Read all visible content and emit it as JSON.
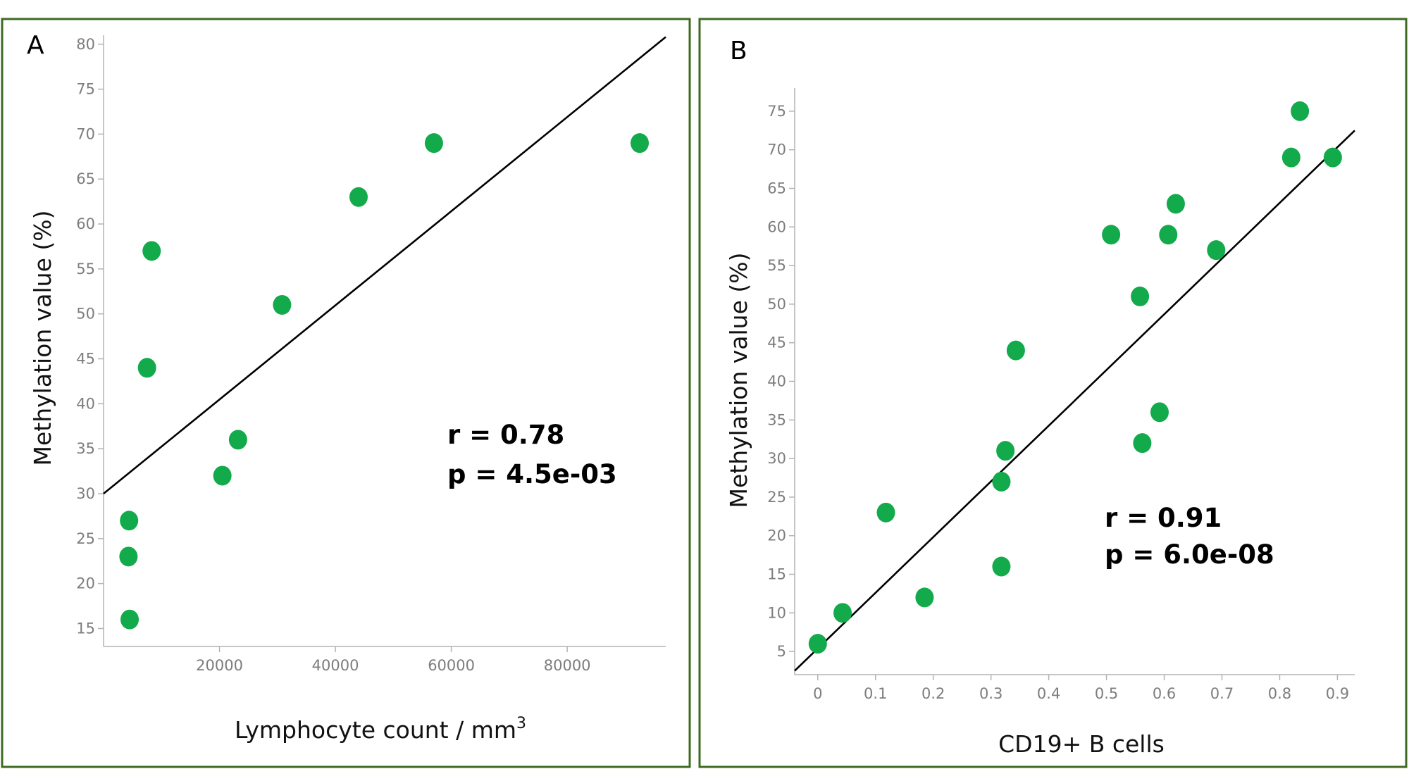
{
  "chart_data": [
    {
      "type": "scatter",
      "panel_label": "A",
      "xlabel": "Lymphocyte count / mm",
      "xlabel_superscript": "3",
      "ylabel": "Methylation value (%)",
      "xlim": [
        0,
        97000
      ],
      "ylim": [
        13,
        81
      ],
      "xticks": [
        20000,
        40000,
        60000,
        80000
      ],
      "xtick_labels": [
        "20000",
        "40000",
        "60000",
        "80000"
      ],
      "yticks": [
        15,
        20,
        25,
        30,
        35,
        40,
        45,
        50,
        55,
        60,
        65,
        70,
        75,
        80
      ],
      "ytick_labels": [
        "15",
        "20",
        "25",
        "30",
        "35",
        "40",
        "45",
        "50",
        "55",
        "60",
        "65",
        "70",
        "75",
        "80"
      ],
      "points": [
        {
          "x": 4500,
          "y": 16
        },
        {
          "x": 4300,
          "y": 23
        },
        {
          "x": 4400,
          "y": 27
        },
        {
          "x": 7500,
          "y": 44
        },
        {
          "x": 8300,
          "y": 57
        },
        {
          "x": 20500,
          "y": 32
        },
        {
          "x": 23200,
          "y": 36
        },
        {
          "x": 30800,
          "y": 51
        },
        {
          "x": 44000,
          "y": 63
        },
        {
          "x": 57000,
          "y": 69
        },
        {
          "x": 92500,
          "y": 69
        }
      ],
      "fit_line": {
        "x": [
          0,
          97000
        ],
        "y": [
          30,
          80.8
        ]
      },
      "annotation": {
        "r_text": "r = 0.78",
        "p_text": "p = 4.5e-03"
      },
      "grid": false
    },
    {
      "type": "scatter",
      "panel_label": "B",
      "xlabel": "CD19+ B cells",
      "ylabel": "Methylation value (%)",
      "xlim": [
        -0.04,
        0.93
      ],
      "ylim": [
        2,
        78
      ],
      "xticks": [
        0,
        0.1,
        0.2,
        0.3,
        0.4,
        0.5,
        0.6,
        0.7,
        0.8,
        0.9
      ],
      "xtick_labels": [
        "0",
        "0.1",
        "0.2",
        "0.3",
        "0.4",
        "0.5",
        "0.6",
        "0.7",
        "0.8",
        "0.9"
      ],
      "yticks": [
        5,
        10,
        15,
        20,
        25,
        30,
        35,
        40,
        45,
        50,
        55,
        60,
        65,
        70,
        75
      ],
      "ytick_labels": [
        "5",
        "10",
        "15",
        "20",
        "25",
        "30",
        "35",
        "40",
        "45",
        "50",
        "55",
        "60",
        "65",
        "70",
        "75"
      ],
      "points": [
        {
          "x": 0.0,
          "y": 6
        },
        {
          "x": 0.043,
          "y": 10
        },
        {
          "x": 0.118,
          "y": 23
        },
        {
          "x": 0.185,
          "y": 12
        },
        {
          "x": 0.318,
          "y": 16
        },
        {
          "x": 0.318,
          "y": 27
        },
        {
          "x": 0.325,
          "y": 31
        },
        {
          "x": 0.343,
          "y": 44
        },
        {
          "x": 0.508,
          "y": 59
        },
        {
          "x": 0.558,
          "y": 51
        },
        {
          "x": 0.562,
          "y": 32
        },
        {
          "x": 0.592,
          "y": 36
        },
        {
          "x": 0.607,
          "y": 59
        },
        {
          "x": 0.62,
          "y": 63
        },
        {
          "x": 0.69,
          "y": 57
        },
        {
          "x": 0.82,
          "y": 69
        },
        {
          "x": 0.835,
          "y": 75
        },
        {
          "x": 0.892,
          "y": 69
        }
      ],
      "fit_line": {
        "x": [
          -0.04,
          0.93
        ],
        "y": [
          2.5,
          72.5
        ]
      },
      "annotation": {
        "r_text": "r = 0.91",
        "p_text": "p = 6.0e-08"
      },
      "grid": false
    }
  ]
}
